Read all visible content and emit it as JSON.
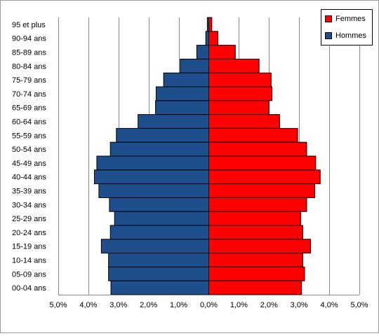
{
  "chart_data": {
    "type": "bar",
    "orientation": "horizontal",
    "layout": "population-pyramid",
    "categories": [
      "95 et plus",
      "90-94 ans",
      "85-89 ans",
      "80-84 ans",
      "75-79 ans",
      "70-74 ans",
      "65-69 ans",
      "60-64 ans",
      "55-59 ans",
      "50-54 ans",
      "45-49 ans",
      "40-44 ans",
      "35-39 ans",
      "30-34 ans",
      "25-29 ans",
      "20-24 ans",
      "15-19 ans",
      "10-14 ans",
      "05-09 ans",
      "00-04 ans"
    ],
    "series": [
      {
        "name": "Hommes",
        "color": "#1f4e8c",
        "side": "left",
        "values": [
          0.05,
          0.1,
          0.4,
          0.95,
          1.5,
          1.75,
          1.77,
          2.35,
          3.07,
          3.27,
          3.72,
          3.8,
          3.65,
          3.3,
          3.13,
          3.27,
          3.57,
          3.33,
          3.33,
          3.25
        ]
      },
      {
        "name": "Femmes",
        "color": "#ff0000",
        "side": "right",
        "values": [
          0.1,
          0.3,
          0.88,
          1.67,
          2.07,
          2.1,
          2.0,
          2.35,
          2.95,
          3.25,
          3.55,
          3.7,
          3.52,
          3.25,
          3.05,
          3.12,
          3.38,
          3.12,
          3.18,
          3.08
        ]
      }
    ],
    "x_ticks": [
      "5,0%",
      "4,0%",
      "3,0%",
      "2,0%",
      "1,0%",
      "0,0%",
      "1,0%",
      "2,0%",
      "3,0%",
      "4,0%",
      "5,0%"
    ],
    "xlim": [
      -5,
      5
    ],
    "grid": "vertical",
    "legend_position": "top-right",
    "legend_order": [
      "Femmes",
      "Hommes"
    ],
    "title": "",
    "xlabel": "",
    "ylabel": ""
  }
}
